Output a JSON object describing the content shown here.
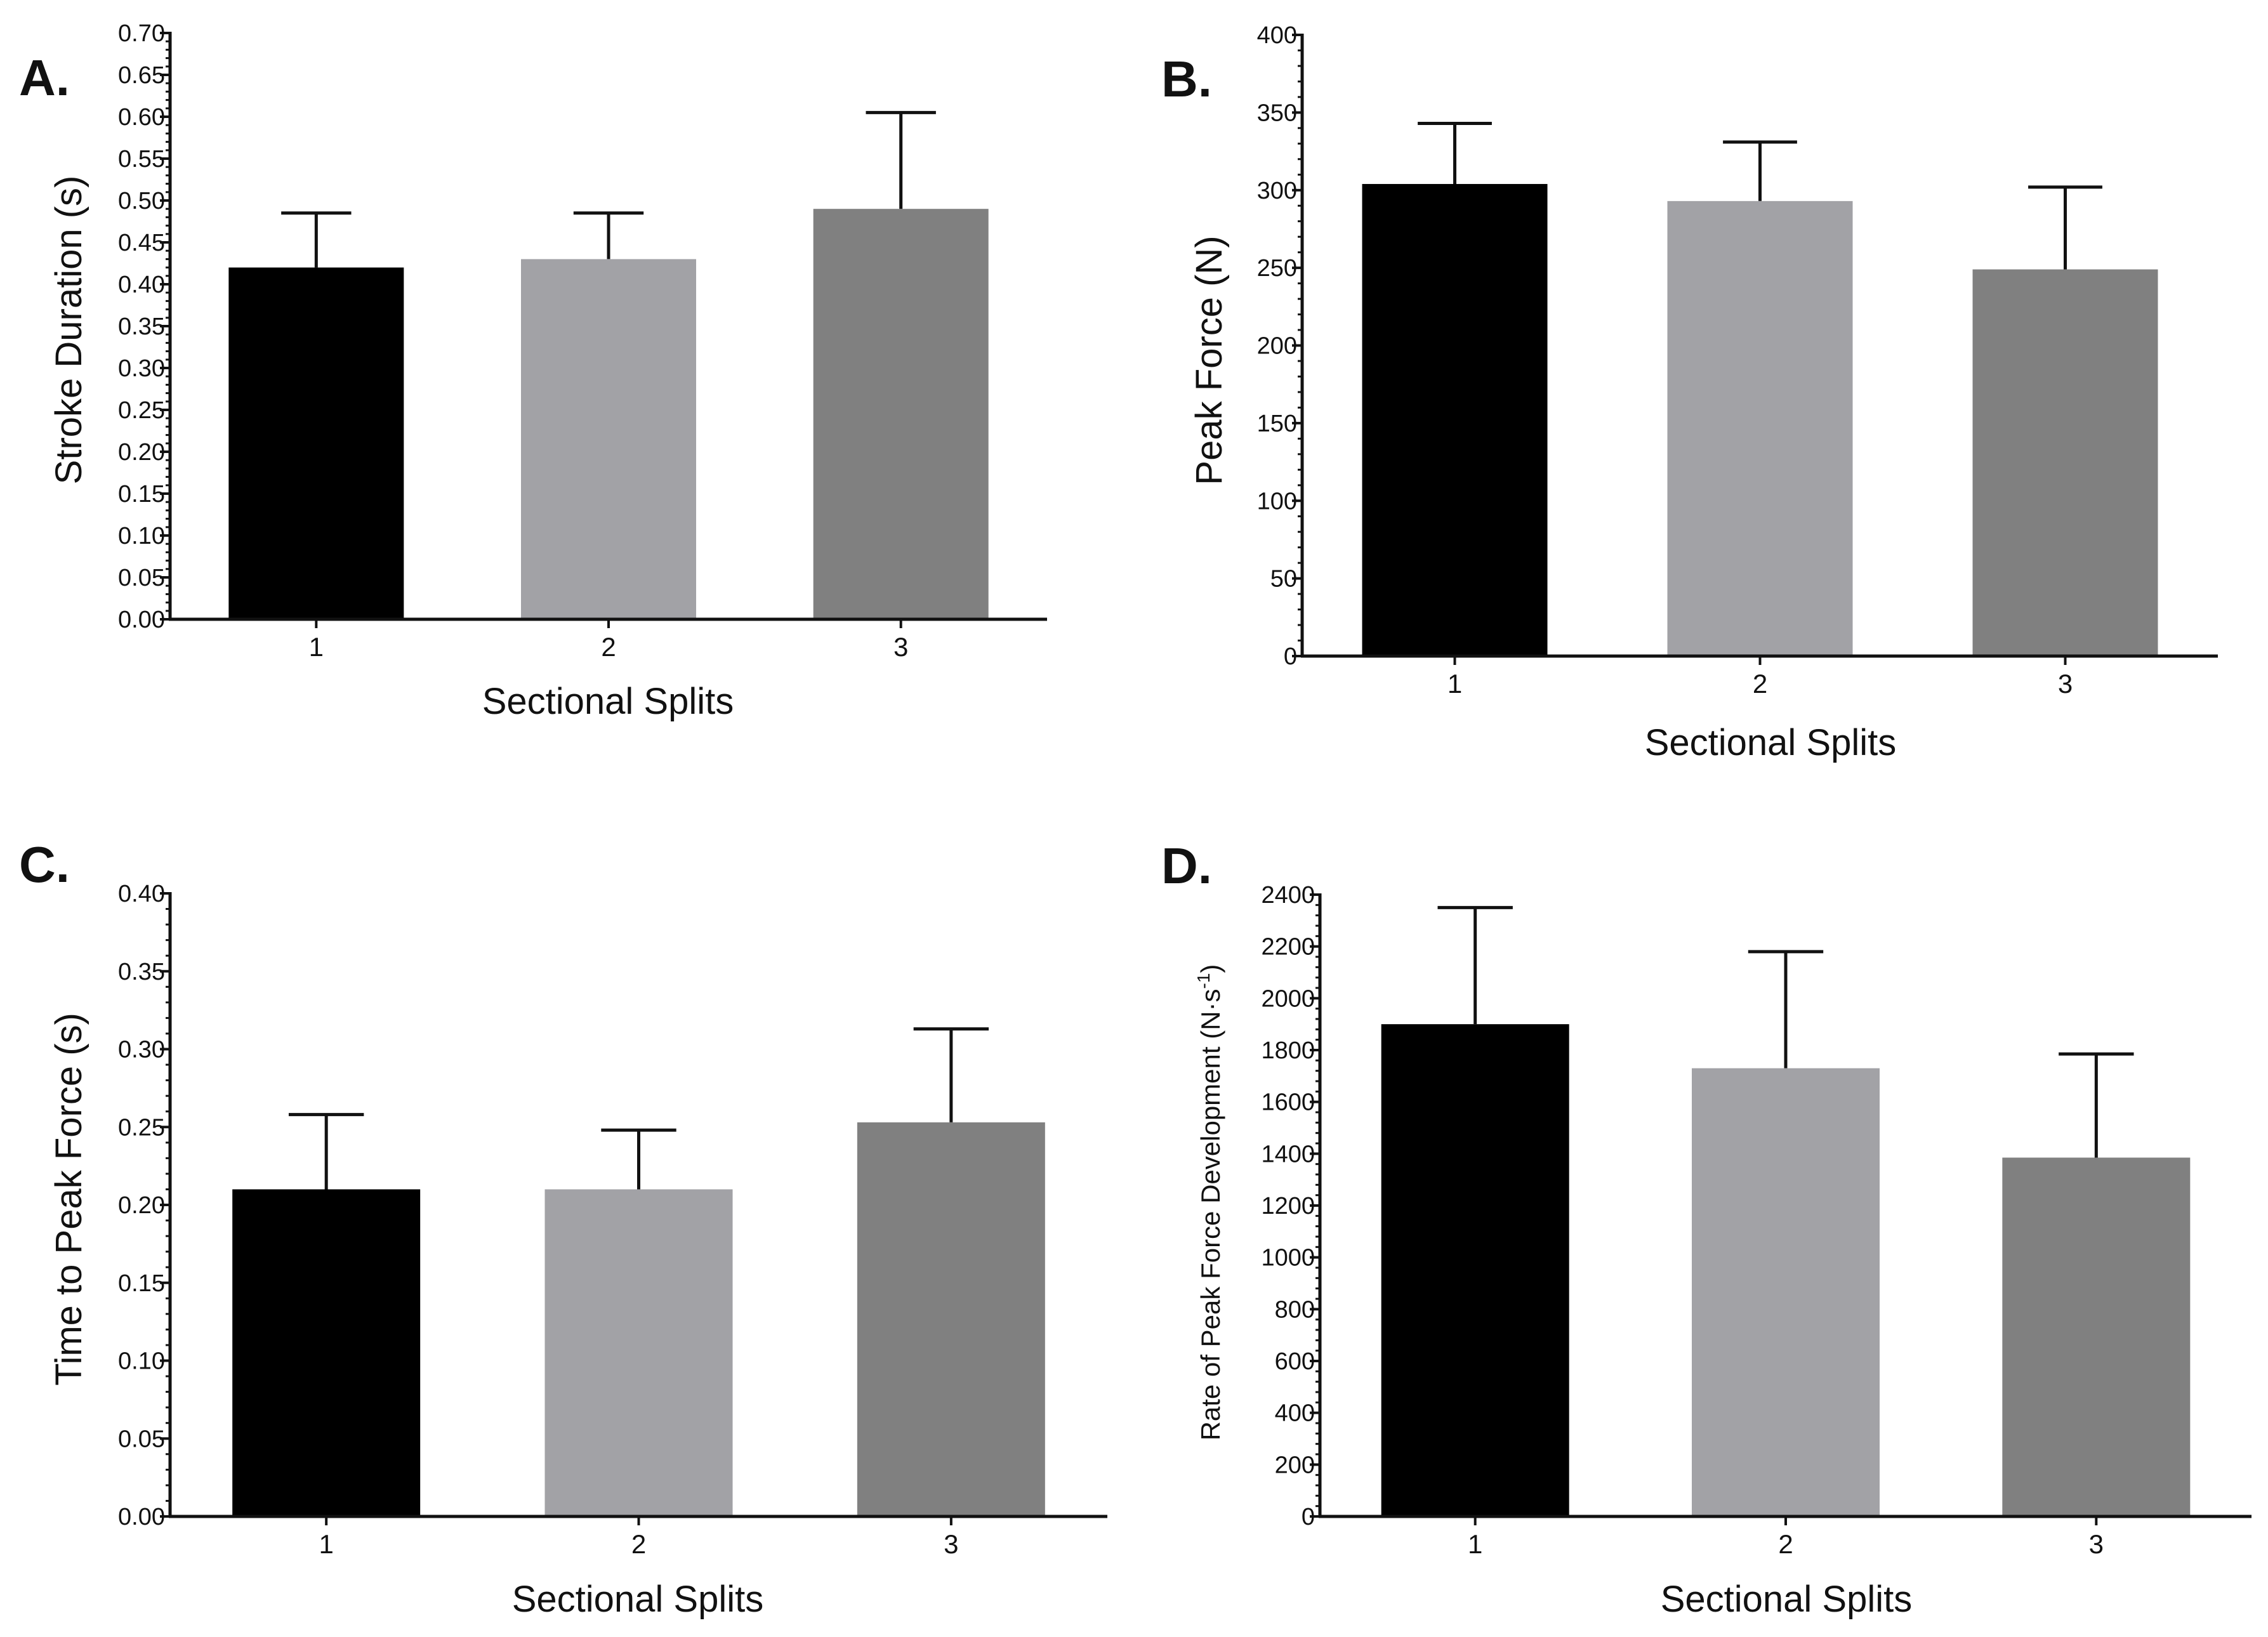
{
  "chart_data": [
    {
      "panel": "A.",
      "type": "bar",
      "xlabel": "Sectional Splits",
      "ylabel": "Stroke Duration (s)",
      "categories": [
        "1",
        "2",
        "3"
      ],
      "values": [
        0.42,
        0.43,
        0.49
      ],
      "errors": [
        0.065,
        0.055,
        0.115
      ],
      "ylim": [
        0,
        0.7
      ],
      "yticks": [
        "0.00",
        "0.05",
        "0.10",
        "0.15",
        "0.20",
        "0.25",
        "0.30",
        "0.35",
        "0.40",
        "0.45",
        "0.50",
        "0.55",
        "0.60",
        "0.65",
        "0.70"
      ],
      "colors": [
        "#000000",
        "#a2a2a6",
        "#808080"
      ],
      "grid": false
    },
    {
      "panel": "B.",
      "type": "bar",
      "xlabel": "Sectional Splits",
      "ylabel": "Peak Force (N)",
      "categories": [
        "1",
        "2",
        "3"
      ],
      "values": [
        304,
        293,
        249
      ],
      "errors": [
        39,
        38,
        53
      ],
      "ylim": [
        0,
        400
      ],
      "yticks": [
        "0",
        "50",
        "100",
        "150",
        "200",
        "250",
        "300",
        "350",
        "400"
      ],
      "colors": [
        "#000000",
        "#a2a2a6",
        "#808080"
      ],
      "grid": false
    },
    {
      "panel": "C.",
      "type": "bar",
      "xlabel": "Sectional Splits",
      "ylabel": "Time to Peak Force (s)",
      "categories": [
        "1",
        "2",
        "3"
      ],
      "values": [
        0.21,
        0.21,
        0.253
      ],
      "errors": [
        0.048,
        0.038,
        0.06
      ],
      "ylim": [
        0,
        0.4
      ],
      "yticks": [
        "0.00",
        "0.05",
        "0.10",
        "0.15",
        "0.20",
        "0.25",
        "0.30",
        "0.35",
        "0.40"
      ],
      "colors": [
        "#000000",
        "#a2a2a6",
        "#808080"
      ],
      "grid": false
    },
    {
      "panel": "D.",
      "type": "bar",
      "xlabel": "Sectional Splits",
      "ylabel": "Rate of Peak Force Development (N·s",
      "ylabel_sup": "-1",
      "ylabel_suffix": ")",
      "categories": [
        "1",
        "2",
        "3"
      ],
      "values": [
        1900,
        1730,
        1385
      ],
      "errors": [
        450,
        450,
        400
      ],
      "ylim": [
        0,
        2400
      ],
      "yticks": [
        "0",
        "200",
        "400",
        "600",
        "800",
        "1000",
        "1200",
        "1400",
        "1600",
        "1800",
        "2000",
        "2200",
        "2400"
      ],
      "colors": [
        "#000000",
        "#a2a2a6",
        "#808080"
      ],
      "grid": false
    }
  ]
}
